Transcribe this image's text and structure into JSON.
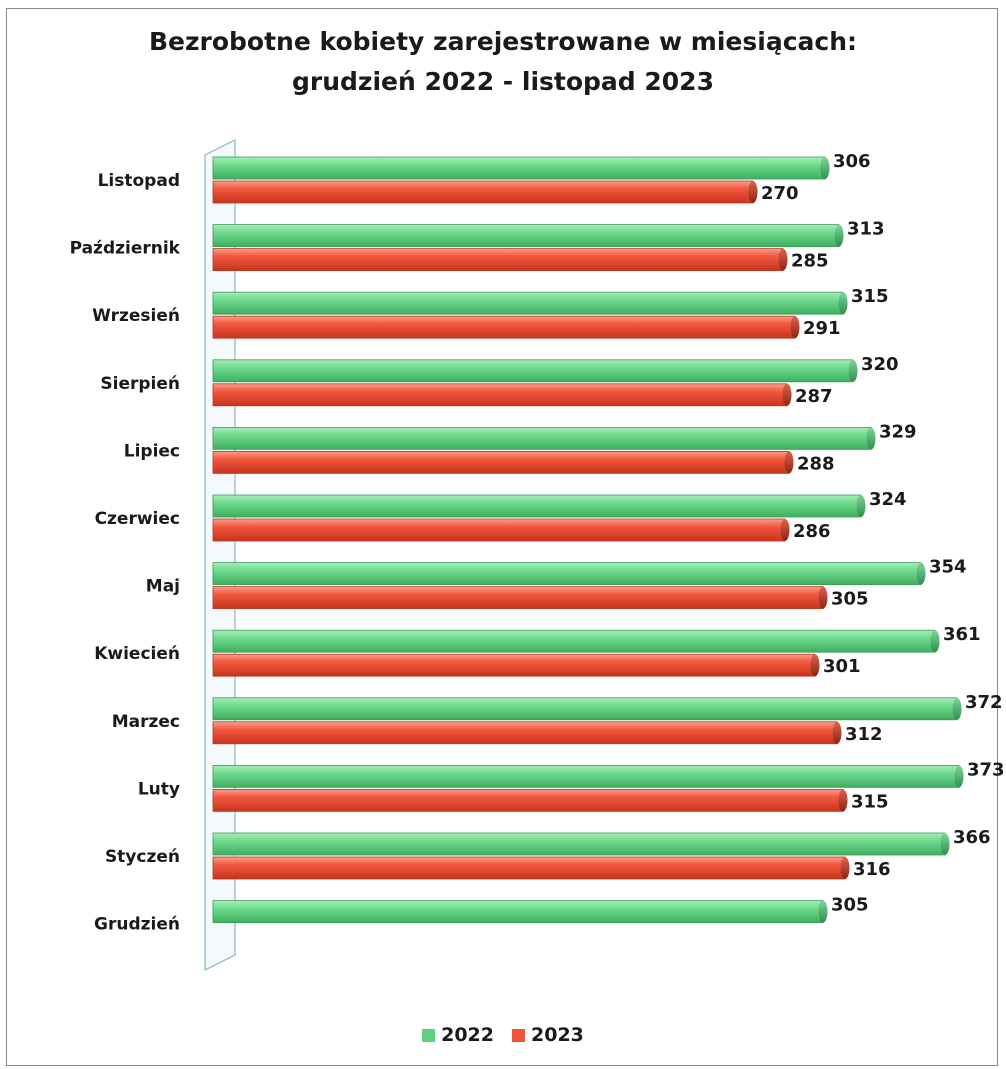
{
  "chart_data": {
    "type": "bar",
    "orientation": "horizontal",
    "title_line1": "Bezrobotne kobiety zarejestrowane w miesiącach:",
    "title_line2": "grudzień 2022 - listopad 2023",
    "categories": [
      "Listopad",
      "Październik",
      "Wrzesień",
      "Sierpień",
      "Lipiec",
      "Czerwiec",
      "Maj",
      "Kwiecień",
      "Marzec",
      "Luty",
      "Styczeń",
      "Grudzień"
    ],
    "series": [
      {
        "name": "2022",
        "color": "#5fd17f",
        "values": [
          306,
          313,
          315,
          320,
          329,
          324,
          354,
          361,
          372,
          373,
          366,
          305
        ]
      },
      {
        "name": "2023",
        "color": "#f0553c",
        "values": [
          270,
          285,
          291,
          287,
          288,
          286,
          305,
          301,
          312,
          315,
          316,
          null
        ]
      }
    ],
    "xlim": [
      0,
      380
    ],
    "legend_position": "bottom",
    "grid": false,
    "data_labels": true
  }
}
